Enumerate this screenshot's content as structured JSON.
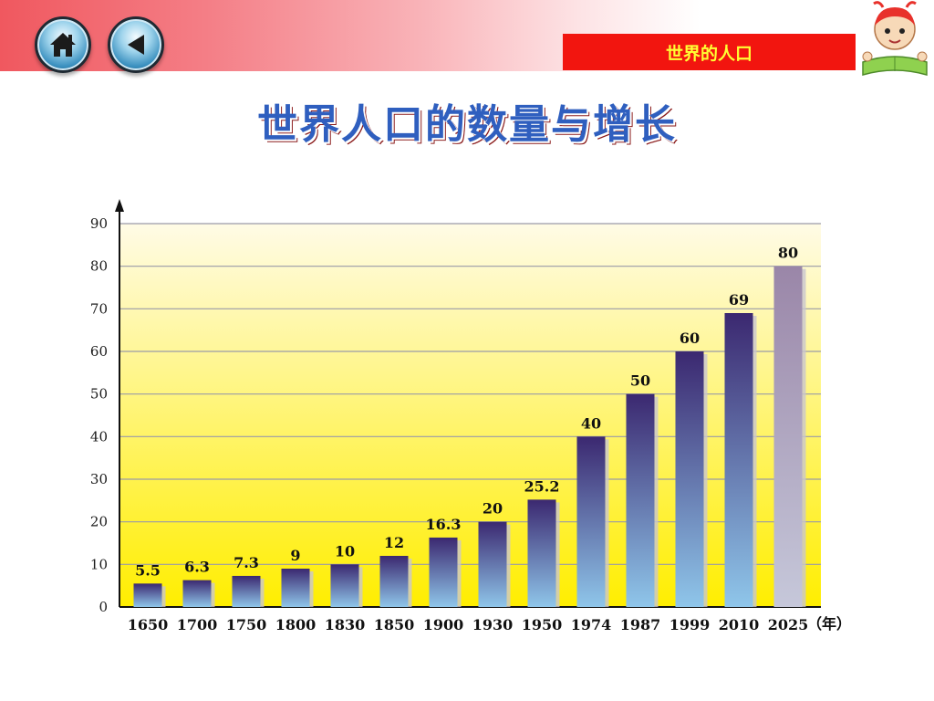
{
  "header": {
    "section_label": "世界的人口",
    "home_icon": "home-icon",
    "back_icon": "back-arrow-icon",
    "mascot_icon": "cartoon-child-reading-icon",
    "colors": {
      "bar_start": "#f0585f",
      "section_bg": "#f2150f",
      "section_text": "#ffff33"
    }
  },
  "title": "世界人口的数量与增长",
  "chart_data": {
    "type": "bar",
    "categories": [
      "1650",
      "1700",
      "1750",
      "1800",
      "1830",
      "1850",
      "1900",
      "1930",
      "1950",
      "1974",
      "1987",
      "1999",
      "2010",
      "2025"
    ],
    "values": [
      5.5,
      6.3,
      7.3,
      9,
      10,
      12,
      16.3,
      20,
      25.2,
      40,
      50,
      60,
      69,
      80
    ],
    "data_labels": [
      "5.5",
      "6.3",
      "7.3",
      "9",
      "10",
      "12",
      "16.3",
      "20",
      "25.2",
      "40",
      "50",
      "60",
      "69",
      "80"
    ],
    "projected_index": 13,
    "x_unit_label": "（年）",
    "ylim": [
      0,
      90
    ],
    "yticks": [
      0,
      10,
      20,
      30,
      40,
      50,
      60,
      70,
      80,
      90
    ],
    "grid": true,
    "colors": {
      "bar_top": "#3b2870",
      "bar_bottom": "#8fc6ea",
      "projected_top": "#9a86a8",
      "projected_bottom": "#c6c8da",
      "background_top": "#fffbe6",
      "background_bottom": "#ffee00"
    }
  }
}
